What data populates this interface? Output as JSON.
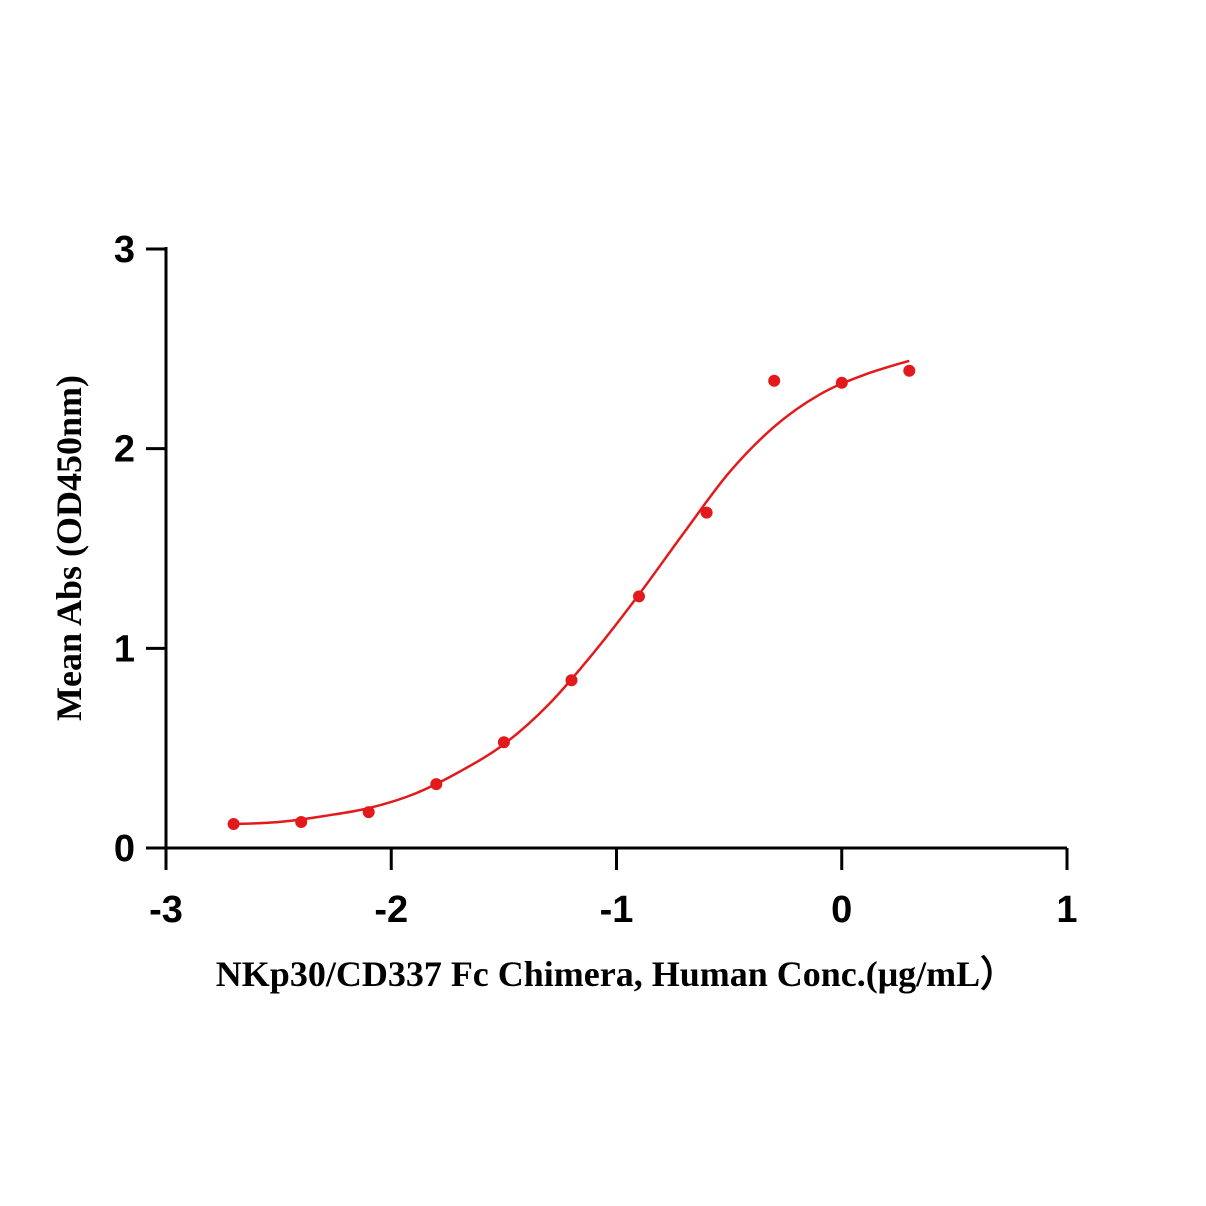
{
  "chart_data": {
    "type": "scatter",
    "title": "",
    "xlabel": "NKp30/CD337 Fc Chimera, Human Conc.(μg/mL）",
    "ylabel": "Mean Abs (OD450nm)",
    "xlim": [
      -3,
      1
    ],
    "ylim": [
      0,
      3
    ],
    "x_ticks": [
      -3,
      -2,
      -1,
      0,
      1
    ],
    "y_ticks": [
      0,
      1,
      2,
      3
    ],
    "x_tick_labels": [
      "-3",
      "-2",
      "-1",
      "0",
      "1"
    ],
    "y_tick_labels": [
      "0",
      "1",
      "2",
      "3"
    ],
    "grid": false,
    "legend": "none",
    "color": "#e31a1c",
    "series": [
      {
        "type": "scatter",
        "x": [
          -2.7,
          -2.4,
          -2.1,
          -1.8,
          -1.5,
          -1.2,
          -0.9,
          -0.6,
          -0.3,
          0.0,
          0.3
        ],
        "y": [
          0.12,
          0.13,
          0.18,
          0.32,
          0.53,
          0.84,
          1.26,
          1.68,
          2.34,
          2.33,
          2.39
        ]
      },
      {
        "type": "line",
        "fit": "4PL sigmoidal curve",
        "x": [
          -2.7,
          -2.5,
          -2.3,
          -2.1,
          -1.9,
          -1.7,
          -1.5,
          -1.3,
          -1.1,
          -0.9,
          -0.7,
          -0.5,
          -0.3,
          -0.1,
          0.1,
          0.3
        ],
        "y": [
          0.12,
          0.13,
          0.16,
          0.2,
          0.27,
          0.38,
          0.52,
          0.72,
          0.98,
          1.27,
          1.58,
          1.88,
          2.11,
          2.27,
          2.37,
          2.44
        ]
      }
    ]
  }
}
